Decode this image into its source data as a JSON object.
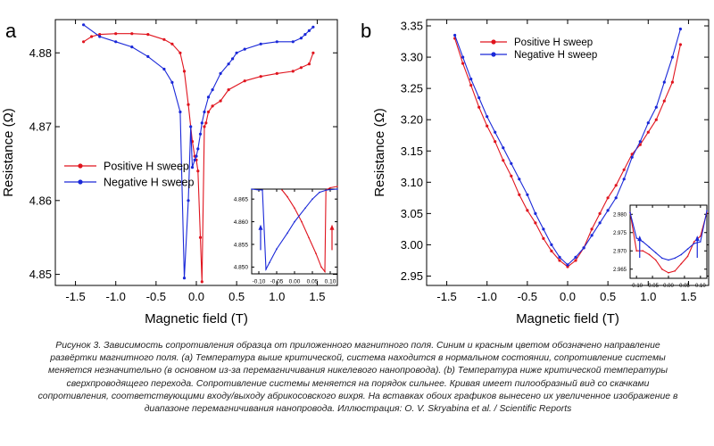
{
  "colors": {
    "positive": "#e0141e",
    "negative": "#1a28d8",
    "axis": "#000000"
  },
  "caption": "Рисунок 3. Зависимость сопротивления образца от приложенного магнитного поля. Синим и красным цветом обозначено направление развёртки магнитного поля. (a) Температура выше критической, система находится в нормальном состоянии, сопротивление системы меняется незначительно (в основном из-за перемагничивания никелевого нанопровода). (b) Температура ниже критической температуры сверхпроводящего перехода. Сопротивление системы меняется на порядок сильнее. Кривая имеет пилообразный вид со скачками сопротивления, соответствующими входу/выходу абрикосовского вихря. На вставках обоих графиков вынесено их увеличенное изображение в диапазоне перемагничивания нанопровода. Иллюстрация: O. V. Skryabina et al. / Scientific Reports",
  "chart_data": [
    {
      "panel_label": "a",
      "type": "line",
      "xlabel": "Magnetic field (T)",
      "ylabel": "Resistance (Ω)",
      "xlim": [
        -1.75,
        1.75
      ],
      "ylim": [
        4.8485,
        4.8845
      ],
      "xticks": [
        "-1.5",
        "-1.0",
        "-0.5",
        "0.0",
        "0.5",
        "1.0",
        "1.5"
      ],
      "yticks": [
        "4.85",
        "4.86",
        "4.87",
        "4.88"
      ],
      "legend_position": "center-left",
      "series": [
        {
          "name": "Positive H sweep",
          "color": "positive",
          "x": [
            -1.4,
            -1.3,
            -1.2,
            -1.0,
            -0.8,
            -0.6,
            -0.4,
            -0.3,
            -0.2,
            -0.15,
            -0.1,
            -0.05,
            -0.02,
            0.0,
            0.02,
            0.05,
            0.07,
            0.1,
            0.12,
            0.15,
            0.2,
            0.3,
            0.4,
            0.6,
            0.8,
            1.0,
            1.2,
            1.3,
            1.4,
            1.45
          ],
          "y": [
            4.8815,
            4.8822,
            4.8825,
            4.8826,
            4.8826,
            4.8825,
            4.8818,
            4.8812,
            4.88,
            4.8775,
            4.873,
            4.868,
            4.866,
            4.8655,
            4.864,
            4.855,
            4.849,
            4.87,
            4.8705,
            4.872,
            4.8728,
            4.8735,
            4.875,
            4.8762,
            4.8768,
            4.8772,
            4.8775,
            4.878,
            4.8785,
            4.88
          ]
        },
        {
          "name": "Negative H sweep",
          "color": "negative",
          "x": [
            1.45,
            1.4,
            1.35,
            1.3,
            1.2,
            1.0,
            0.8,
            0.6,
            0.5,
            0.45,
            0.4,
            0.3,
            0.2,
            0.15,
            0.1,
            0.07,
            0.05,
            0.02,
            0.0,
            -0.02,
            -0.05,
            -0.07,
            -0.1,
            -0.15,
            -0.2,
            -0.3,
            -0.4,
            -0.6,
            -0.8,
            -1.0,
            -1.2,
            -1.4
          ],
          "y": [
            4.8835,
            4.883,
            4.8825,
            4.882,
            4.8815,
            4.8815,
            4.8812,
            4.8805,
            4.88,
            4.8792,
            4.8785,
            4.8772,
            4.875,
            4.874,
            4.872,
            4.8705,
            4.869,
            4.867,
            4.866,
            4.8655,
            4.8645,
            4.87,
            4.86,
            4.8495,
            4.872,
            4.876,
            4.8778,
            4.8795,
            4.8808,
            4.8815,
            4.8822,
            4.8838
          ]
        }
      ],
      "inset": {
        "xlim": [
          -0.12,
          0.12
        ],
        "ylim": [
          4.8485,
          4.8672
        ],
        "xticks": [
          "-0.10",
          "-0.05",
          "0.00",
          "0.05",
          "0.10"
        ],
        "yticks": [
          "4.850",
          "4.855",
          "4.860",
          "4.865"
        ],
        "series": [
          {
            "color": "positive",
            "x": [
              -0.035,
              -0.02,
              0.0,
              0.02,
              0.04,
              0.06,
              0.075,
              0.085,
              0.088,
              0.1,
              0.12
            ],
            "y": [
              4.867,
              4.8655,
              4.863,
              4.86,
              4.8565,
              4.853,
              4.85,
              4.849,
              4.867,
              4.8675,
              4.8678
            ]
          },
          {
            "color": "negative",
            "x": [
              0.12,
              0.09,
              0.07,
              0.05,
              0.03,
              0.0,
              -0.02,
              -0.05,
              -0.07,
              -0.08,
              -0.09,
              -0.1,
              -0.12
            ],
            "y": [
              4.8672,
              4.867,
              4.8665,
              4.865,
              4.863,
              4.86,
              4.8575,
              4.854,
              4.851,
              4.8495,
              4.867,
              4.867,
              4.8672
            ]
          }
        ],
        "arrows": [
          {
            "x": -0.095,
            "direction": "up",
            "color": "negative"
          },
          {
            "x": 0.105,
            "direction": "up",
            "color": "positive"
          }
        ]
      }
    },
    {
      "panel_label": "b",
      "type": "line",
      "xlabel": "Magnetic field (T)",
      "ylabel": "Resistance (Ω)",
      "xlim": [
        -1.75,
        1.75
      ],
      "ylim": [
        2.935,
        3.36
      ],
      "xticks": [
        "-1.5",
        "-1.0",
        "-0.5",
        "0.0",
        "0.5",
        "1.0",
        "1.5"
      ],
      "yticks": [
        "2.95",
        "3.00",
        "3.05",
        "3.10",
        "3.15",
        "3.20",
        "3.25",
        "3.30",
        "3.35"
      ],
      "legend_position": "top-left",
      "series": [
        {
          "name": "Positive H sweep",
          "color": "positive",
          "x": [
            -1.4,
            -1.3,
            -1.2,
            -1.1,
            -1.0,
            -0.9,
            -0.8,
            -0.7,
            -0.6,
            -0.5,
            -0.4,
            -0.3,
            -0.2,
            -0.1,
            0.0,
            0.1,
            0.2,
            0.3,
            0.4,
            0.5,
            0.6,
            0.7,
            0.8,
            0.9,
            1.0,
            1.1,
            1.2,
            1.3,
            1.4
          ],
          "y": [
            3.33,
            3.29,
            3.255,
            3.22,
            3.19,
            3.165,
            3.135,
            3.11,
            3.08,
            3.055,
            3.035,
            3.01,
            2.99,
            2.975,
            2.965,
            2.975,
            2.995,
            3.025,
            3.05,
            3.075,
            3.095,
            3.12,
            3.145,
            3.16,
            3.18,
            3.2,
            3.23,
            3.26,
            3.32
          ]
        },
        {
          "name": "Negative H sweep",
          "color": "negative",
          "x": [
            1.4,
            1.3,
            1.2,
            1.1,
            1.0,
            0.9,
            0.8,
            0.7,
            0.6,
            0.5,
            0.4,
            0.3,
            0.2,
            0.1,
            0.0,
            -0.1,
            -0.2,
            -0.3,
            -0.4,
            -0.5,
            -0.6,
            -0.7,
            -0.8,
            -0.9,
            -1.0,
            -1.1,
            -1.2,
            -1.3,
            -1.4
          ],
          "y": [
            3.345,
            3.3,
            3.26,
            3.22,
            3.195,
            3.165,
            3.14,
            3.105,
            3.075,
            3.055,
            3.035,
            3.015,
            2.995,
            2.98,
            2.968,
            2.98,
            3.0,
            3.025,
            3.05,
            3.08,
            3.105,
            3.13,
            3.155,
            3.18,
            3.205,
            3.235,
            3.265,
            3.3,
            3.335
          ]
        }
      ],
      "inset": {
        "xlim": [
          -0.12,
          0.12
        ],
        "ylim": [
          2.9625,
          2.9825
        ],
        "xticks": [
          "-0.10",
          "-0.05",
          "0.00",
          "0.05",
          "0.10"
        ],
        "yticks": [
          "2.965",
          "2.970",
          "2.975",
          "2.980"
        ],
        "series": [
          {
            "color": "positive",
            "x": [
              -0.12,
              -0.1,
              -0.08,
              -0.06,
              -0.04,
              -0.02,
              0.0,
              0.02,
              0.04,
              0.06,
              0.08,
              0.1,
              0.12
            ],
            "y": [
              2.9805,
              2.97,
              2.97,
              2.969,
              2.9675,
              2.965,
              2.964,
              2.9645,
              2.9665,
              2.9685,
              2.9725,
              2.974,
              2.9805
            ]
          },
          {
            "color": "negative",
            "x": [
              0.12,
              0.1,
              0.08,
              0.06,
              0.04,
              0.02,
              0.0,
              -0.02,
              -0.04,
              -0.06,
              -0.08,
              -0.1,
              -0.12
            ],
            "y": [
              2.981,
              2.9725,
              2.972,
              2.9705,
              2.969,
              2.968,
              2.9675,
              2.968,
              2.9695,
              2.971,
              2.9725,
              2.9735,
              2.9805
            ]
          }
        ],
        "arrows": [
          {
            "x": -0.09,
            "direction": "up",
            "color": "negative"
          },
          {
            "x": 0.09,
            "direction": "up",
            "color": "negative"
          }
        ]
      }
    }
  ]
}
